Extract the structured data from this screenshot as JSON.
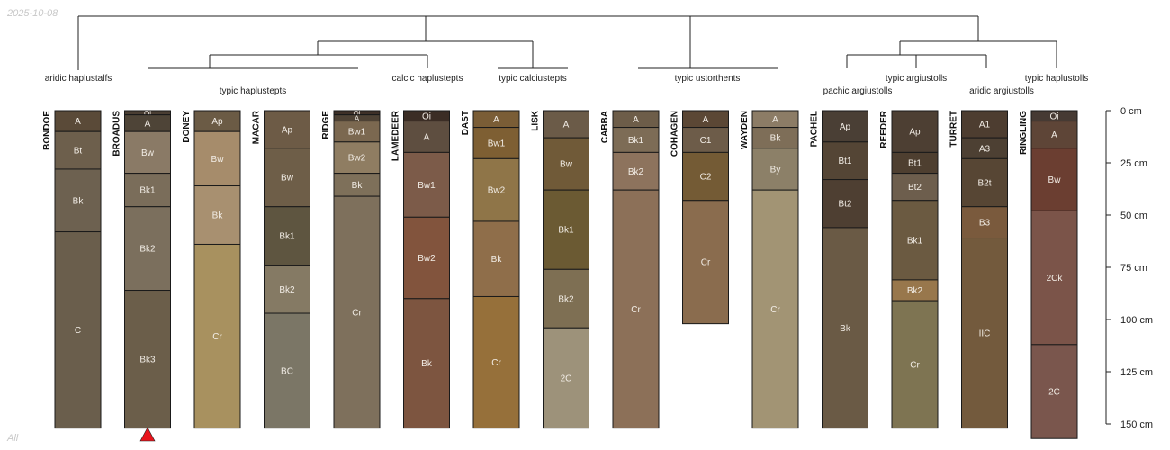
{
  "header": {
    "date": "2025-10-08"
  },
  "footer": {
    "filter": "All"
  },
  "chart_data": {
    "type": "soil-profile-sketches",
    "title": "",
    "depth_axis": {
      "label_unit": "cm",
      "min": 0,
      "max": 150,
      "ticks": [
        {
          "value": 0,
          "label": "0 cm"
        },
        {
          "value": 25,
          "label": "25 cm"
        },
        {
          "value": 50,
          "label": "50 cm"
        },
        {
          "value": 75,
          "label": "75 cm"
        },
        {
          "value": 100,
          "label": "100 cm"
        },
        {
          "value": 125,
          "label": "125 cm"
        },
        {
          "value": 150,
          "label": "150 cm"
        }
      ]
    },
    "marker_profile": "BROADUS",
    "marker_color": "#e8141c",
    "taxa": [
      {
        "label": "aridic haplustalfs",
        "members": [
          "BONDOE"
        ]
      },
      {
        "label": "typic haplustepts",
        "members": [
          "BROADUS",
          "DONEY",
          "MACAR",
          "RIDGE"
        ]
      },
      {
        "label": "calcic haplustepts",
        "members": [
          "LAMEDEER"
        ]
      },
      {
        "label": "typic calciustepts",
        "members": [
          "DAST",
          "LISK"
        ]
      },
      {
        "label": "typic ustorthents",
        "members": [
          "CABBA",
          "COHAGEN",
          "WAYDEN"
        ]
      },
      {
        "label": "pachic argiustolls",
        "members": [
          "PACHEL"
        ]
      },
      {
        "label": "typic argiustolls",
        "members": [
          "REEDER"
        ]
      },
      {
        "label": "aridic argiustolls",
        "members": [
          "TURRET"
        ]
      },
      {
        "label": "typic haplustolls",
        "members": [
          "RINGLING"
        ]
      }
    ],
    "profiles": [
      {
        "name": "BONDOE",
        "horizons": [
          {
            "name": "A",
            "top": 0,
            "bottom": 10,
            "color": "#5a4a38"
          },
          {
            "name": "Bt",
            "top": 10,
            "bottom": 28,
            "color": "#6d5f4c"
          },
          {
            "name": "Bk",
            "top": 28,
            "bottom": 58,
            "color": "#6d6150"
          },
          {
            "name": "C",
            "top": 58,
            "bottom": 152,
            "color": "#6a5e4c"
          }
        ]
      },
      {
        "name": "BROADUS",
        "horizons": [
          {
            "name": "Oi",
            "top": 0,
            "bottom": 2,
            "color": "#4a3e33"
          },
          {
            "name": "A",
            "top": 2,
            "bottom": 10,
            "color": "#4e4437"
          },
          {
            "name": "Bw",
            "top": 10,
            "bottom": 30,
            "color": "#8a7a66"
          },
          {
            "name": "Bk1",
            "top": 30,
            "bottom": 46,
            "color": "#7a6d5a"
          },
          {
            "name": "Bk2",
            "top": 46,
            "bottom": 86,
            "color": "#7b6f5d"
          },
          {
            "name": "Bk3",
            "top": 86,
            "bottom": 152,
            "color": "#6b5e4a"
          }
        ]
      },
      {
        "name": "DONEY",
        "horizons": [
          {
            "name": "Ap",
            "top": 0,
            "bottom": 10,
            "color": "#6b5b45"
          },
          {
            "name": "Bw",
            "top": 10,
            "bottom": 36,
            "color": "#a68c6b"
          },
          {
            "name": "Bk",
            "top": 36,
            "bottom": 64,
            "color": "#a89070"
          },
          {
            "name": "Cr",
            "top": 64,
            "bottom": 152,
            "color": "#a8915f"
          }
        ]
      },
      {
        "name": "MACAR",
        "horizons": [
          {
            "name": "Ap",
            "top": 0,
            "bottom": 18,
            "color": "#6d5b46"
          },
          {
            "name": "Bw",
            "top": 18,
            "bottom": 46,
            "color": "#6e5e48"
          },
          {
            "name": "Bk1",
            "top": 46,
            "bottom": 74,
            "color": "#5e5540"
          },
          {
            "name": "Bk2",
            "top": 74,
            "bottom": 97,
            "color": "#857a64"
          },
          {
            "name": "BC",
            "top": 97,
            "bottom": 152,
            "color": "#7b7666"
          }
        ]
      },
      {
        "name": "RIDGE",
        "horizons": [
          {
            "name": "Oi",
            "top": 0,
            "bottom": 2,
            "color": "#3e3028"
          },
          {
            "name": "A",
            "top": 2,
            "bottom": 5,
            "color": "#4e4235"
          },
          {
            "name": "Bw1",
            "top": 5,
            "bottom": 15,
            "color": "#7b6850"
          },
          {
            "name": "Bw2",
            "top": 15,
            "bottom": 30,
            "color": "#8f7d62"
          },
          {
            "name": "Bk",
            "top": 30,
            "bottom": 41,
            "color": "#7e705a"
          },
          {
            "name": "Cr",
            "top": 41,
            "bottom": 152,
            "color": "#7e705c"
          }
        ]
      },
      {
        "name": "LAMEDEER",
        "horizons": [
          {
            "name": "Oi",
            "top": 0,
            "bottom": 5,
            "color": "#3b2d25"
          },
          {
            "name": "A",
            "top": 5,
            "bottom": 20,
            "color": "#5e4e40"
          },
          {
            "name": "Bw1",
            "top": 20,
            "bottom": 51,
            "color": "#7c5b49"
          },
          {
            "name": "Bw2",
            "top": 51,
            "bottom": 90,
            "color": "#82543d"
          },
          {
            "name": "Bk",
            "top": 90,
            "bottom": 152,
            "color": "#7d5540"
          }
        ]
      },
      {
        "name": "DAST",
        "horizons": [
          {
            "name": "A",
            "top": 0,
            "bottom": 8,
            "color": "#7a5d36"
          },
          {
            "name": "Bw1",
            "top": 8,
            "bottom": 23,
            "color": "#7e5f33"
          },
          {
            "name": "Bw2",
            "top": 23,
            "bottom": 53,
            "color": "#8f7548"
          },
          {
            "name": "Bk",
            "top": 53,
            "bottom": 89,
            "color": "#8f6e4a"
          },
          {
            "name": "Cr",
            "top": 89,
            "bottom": 152,
            "color": "#96703a"
          }
        ]
      },
      {
        "name": "LISK",
        "horizons": [
          {
            "name": "A",
            "top": 0,
            "bottom": 13,
            "color": "#6b5b48"
          },
          {
            "name": "Bw",
            "top": 13,
            "bottom": 38,
            "color": "#705a38"
          },
          {
            "name": "Bk1",
            "top": 38,
            "bottom": 76,
            "color": "#6b5a33"
          },
          {
            "name": "Bk2",
            "top": 76,
            "bottom": 104,
            "color": "#7e6f53"
          },
          {
            "name": "2C",
            "top": 104,
            "bottom": 152,
            "color": "#9d927a"
          }
        ]
      },
      {
        "name": "CABBA",
        "horizons": [
          {
            "name": "A",
            "top": 0,
            "bottom": 8,
            "color": "#6d5d49"
          },
          {
            "name": "Bk1",
            "top": 8,
            "bottom": 20,
            "color": "#7d6c56"
          },
          {
            "name": "Bk2",
            "top": 20,
            "bottom": 38,
            "color": "#8d735d"
          },
          {
            "name": "Cr",
            "top": 38,
            "bottom": 152,
            "color": "#8c7058"
          }
        ]
      },
      {
        "name": "COHAGEN",
        "horizons": [
          {
            "name": "A",
            "top": 0,
            "bottom": 8,
            "color": "#5b4735"
          },
          {
            "name": "C1",
            "top": 8,
            "bottom": 20,
            "color": "#6d5c49"
          },
          {
            "name": "C2",
            "top": 20,
            "bottom": 43,
            "color": "#745b35"
          },
          {
            "name": "Cr",
            "top": 43,
            "bottom": 102,
            "color": "#8a6c4e"
          }
        ]
      },
      {
        "name": "WAYDEN",
        "horizons": [
          {
            "name": "A",
            "top": 0,
            "bottom": 8,
            "color": "#8c7c66"
          },
          {
            "name": "Bk",
            "top": 8,
            "bottom": 18,
            "color": "#7e6e58"
          },
          {
            "name": "By",
            "top": 18,
            "bottom": 38,
            "color": "#8c8068"
          },
          {
            "name": "Cr",
            "top": 38,
            "bottom": 152,
            "color": "#a29474"
          }
        ]
      },
      {
        "name": "PACHEL",
        "horizons": [
          {
            "name": "Ap",
            "top": 0,
            "bottom": 15,
            "color": "#4a3f35"
          },
          {
            "name": "Bt1",
            "top": 15,
            "bottom": 33,
            "color": "#544535"
          },
          {
            "name": "Bt2",
            "top": 33,
            "bottom": 56,
            "color": "#4e3f32"
          },
          {
            "name": "Bk",
            "top": 56,
            "bottom": 152,
            "color": "#6a5a45"
          }
        ]
      },
      {
        "name": "REEDER",
        "horizons": [
          {
            "name": "Ap",
            "top": 0,
            "bottom": 20,
            "color": "#4d3f33"
          },
          {
            "name": "Bt1",
            "top": 20,
            "bottom": 30,
            "color": "#4e3f30"
          },
          {
            "name": "Bt2",
            "top": 30,
            "bottom": 43,
            "color": "#6d5e4d"
          },
          {
            "name": "Bk1",
            "top": 43,
            "bottom": 81,
            "color": "#6b5a41"
          },
          {
            "name": "Bk2",
            "top": 81,
            "bottom": 91,
            "color": "#98774c"
          },
          {
            "name": "Cr",
            "top": 91,
            "bottom": 152,
            "color": "#7e7452"
          }
        ]
      },
      {
        "name": "TURRET",
        "horizons": [
          {
            "name": "A1",
            "top": 0,
            "bottom": 13,
            "color": "#4d3d30"
          },
          {
            "name": "A3",
            "top": 13,
            "bottom": 23,
            "color": "#4d4033"
          },
          {
            "name": "B2t",
            "top": 23,
            "bottom": 46,
            "color": "#574634"
          },
          {
            "name": "B3",
            "top": 46,
            "bottom": 61,
            "color": "#7a5a3d"
          },
          {
            "name": "IIC",
            "top": 61,
            "bottom": 152,
            "color": "#735a3d"
          }
        ]
      },
      {
        "name": "RINGLING",
        "horizons": [
          {
            "name": "Oi",
            "top": 0,
            "bottom": 5,
            "color": "#463a33"
          },
          {
            "name": "A",
            "top": 5,
            "bottom": 18,
            "color": "#5e4537"
          },
          {
            "name": "Bw",
            "top": 18,
            "bottom": 48,
            "color": "#6b3e31"
          },
          {
            "name": "2Ck",
            "top": 48,
            "bottom": 112,
            "color": "#7b5449"
          },
          {
            "name": "2C",
            "top": 112,
            "bottom": 157,
            "color": "#7a564d"
          }
        ]
      }
    ]
  }
}
